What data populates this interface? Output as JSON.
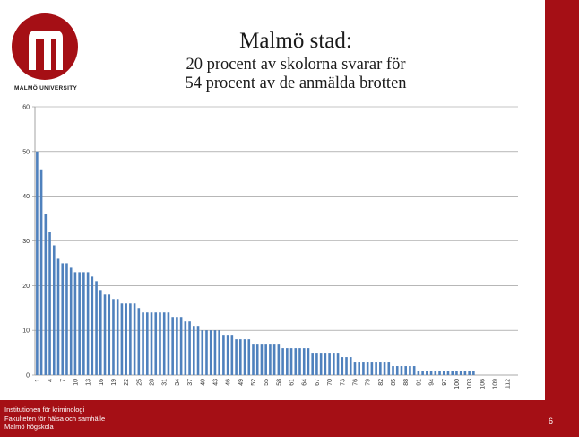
{
  "slide": {
    "title": "Malmö stad:",
    "subtitle_line1": "20 procent av skolorna svarar för",
    "subtitle_line2": "54 procent av de anmälda brotten",
    "logo_text": "MALMÖ UNIVERSITY",
    "footer_line1": "Institutionen för kriminologi",
    "footer_line2": "Fakulteten för hälsa och samhälle",
    "footer_line3": "Malmö högskola",
    "page_number": "6",
    "colors": {
      "brand_red": "#a50f15",
      "bar_blue": "#4f81bd"
    }
  },
  "chart_data": {
    "type": "bar",
    "x_first": 1,
    "x_last": 114,
    "x_tick_labels": [
      "1",
      "4",
      "7",
      "10",
      "13",
      "16",
      "19",
      "22",
      "25",
      "28",
      "31",
      "34",
      "37",
      "40",
      "43",
      "46",
      "49",
      "52",
      "55",
      "58",
      "61",
      "64",
      "67",
      "70",
      "73",
      "76",
      "79",
      "82",
      "85",
      "88",
      "91",
      "94",
      "97",
      "100",
      "103",
      "106",
      "109",
      "112"
    ],
    "values": [
      50,
      46,
      36,
      32,
      29,
      26,
      25,
      25,
      24,
      23,
      23,
      23,
      23,
      22,
      21,
      19,
      18,
      18,
      17,
      17,
      16,
      16,
      16,
      16,
      15,
      14,
      14,
      14,
      14,
      14,
      14,
      14,
      13,
      13,
      13,
      12,
      12,
      11,
      11,
      10,
      10,
      10,
      10,
      10,
      9,
      9,
      9,
      8,
      8,
      8,
      8,
      7,
      7,
      7,
      7,
      7,
      7,
      7,
      6,
      6,
      6,
      6,
      6,
      6,
      6,
      5,
      5,
      5,
      5,
      5,
      5,
      5,
      4,
      4,
      4,
      3,
      3,
      3,
      3,
      3,
      3,
      3,
      3,
      3,
      2,
      2,
      2,
      2,
      2,
      2,
      1,
      1,
      1,
      1,
      1,
      1,
      1,
      1,
      1,
      1,
      1,
      1,
      1,
      1,
      0,
      0,
      0,
      0,
      0,
      0,
      0,
      0,
      0,
      0
    ],
    "ylim": [
      0,
      60
    ],
    "y_ticks": [
      0,
      10,
      20,
      30,
      40,
      50,
      60
    ],
    "grid": true,
    "title": "",
    "xlabel": "",
    "ylabel": ""
  }
}
